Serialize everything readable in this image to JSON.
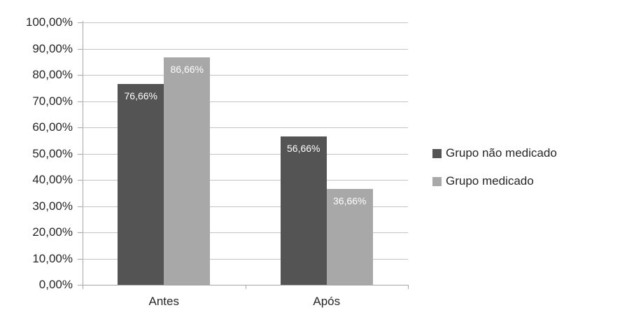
{
  "chart_data": {
    "type": "bar",
    "title": "",
    "xlabel": "",
    "ylabel": "",
    "categories": [
      "Antes",
      "Após"
    ],
    "series": [
      {
        "name": "Grupo não medicado",
        "color": "#545454",
        "values": [
          76.66,
          56.66
        ],
        "value_labels": [
          "76,66%",
          "56,66%"
        ]
      },
      {
        "name": "Grupo medicado",
        "color": "#A8A8A8",
        "values": [
          86.66,
          36.66
        ],
        "value_labels": [
          "86,66%",
          "36,66%"
        ]
      }
    ],
    "ylim": [
      0,
      100
    ],
    "ytick_step": 10,
    "ytick_labels": [
      "100,00%",
      "90,00%",
      "80,00%",
      "70,00%",
      "60,00%",
      "50,00%",
      "40,00%",
      "30,00%",
      "20,00%",
      "10,00%",
      "0,00%"
    ],
    "grid": true,
    "legend_position": "right",
    "value_label_color": "#FFFFFF"
  },
  "colors": {
    "background": "#FFFFFF",
    "gridline": "#C4C4C4",
    "axis": "#A6A6A6",
    "tick_label_text": "#262626",
    "legend_text": "#262626"
  }
}
